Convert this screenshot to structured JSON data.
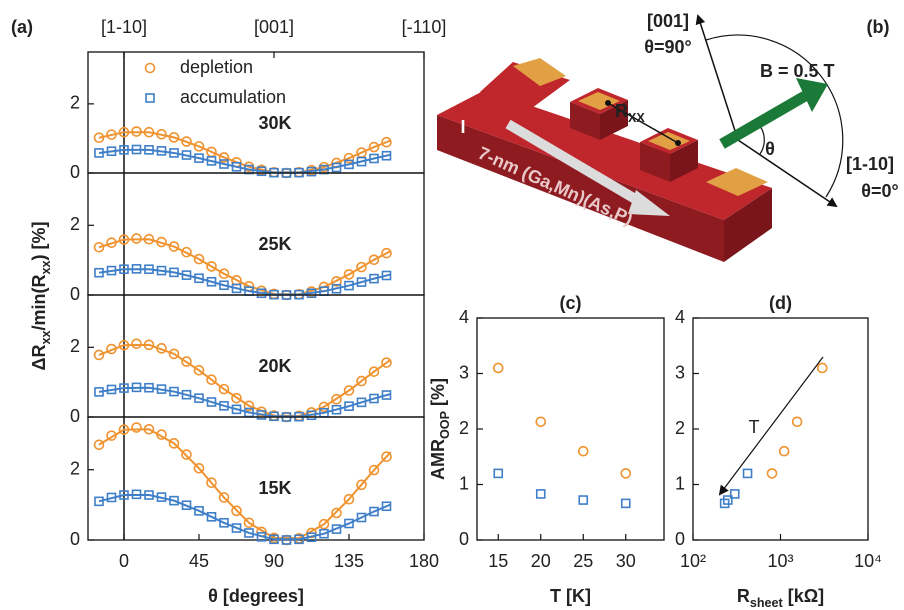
{
  "chart_data": [
    {
      "type": "scatter",
      "panel": "(a)",
      "label": "30K",
      "legend": "upper left",
      "ylabel": [
        "ΔR",
        "xx",
        "/min(R",
        "xx",
        ") [%]"
      ],
      "x2ticks": [
        {
          "value": 0,
          "label": "[1-10]"
        },
        {
          "value": 90,
          "label": "[001]"
        },
        {
          "value": 180,
          "label": "[-110]"
        }
      ],
      "vline": 0,
      "x": [
        -15,
        -7.5,
        0,
        7.5,
        15,
        22.5,
        30,
        37.5,
        45,
        52.5,
        60,
        67.5,
        75,
        82.5,
        90,
        97.5,
        105,
        112.5,
        120,
        127.5,
        135,
        142.5,
        150,
        157.5
      ],
      "fit_x": [
        -15,
        0,
        15,
        30,
        45,
        60,
        75,
        90,
        105,
        120,
        135,
        150,
        160
      ],
      "xlim": [
        -21.6,
        180
      ],
      "ylim": [
        0,
        3.5
      ],
      "yticks": [
        0,
        2
      ],
      "series": [
        {
          "name": "depletion",
          "color": "#f0922e",
          "marker": "circle",
          "values": [
            1.02,
            1.11,
            1.18,
            1.2,
            1.18,
            1.12,
            1.03,
            0.91,
            0.77,
            0.61,
            0.45,
            0.31,
            0.18,
            0.09,
            0.02,
            0,
            0.02,
            0.08,
            0.17,
            0.29,
            0.43,
            0.59,
            0.75,
            0.89
          ],
          "fit": [
            1.02,
            1.18,
            1.18,
            1.03,
            0.77,
            0.45,
            0.18,
            0.02,
            0.02,
            0.17,
            0.43,
            0.75,
            0.94
          ]
        },
        {
          "name": "accumulation",
          "color": "#3f7fc8",
          "marker": "square",
          "values": [
            0.58,
            0.63,
            0.67,
            0.68,
            0.67,
            0.64,
            0.58,
            0.52,
            0.43,
            0.35,
            0.26,
            0.18,
            0.1,
            0.05,
            0.01,
            0,
            0.01,
            0.04,
            0.1,
            0.16,
            0.25,
            0.33,
            0.42,
            0.5
          ],
          "fit": [
            0.58,
            0.67,
            0.67,
            0.58,
            0.43,
            0.26,
            0.1,
            0.01,
            0.01,
            0.1,
            0.25,
            0.42,
            0.53
          ]
        }
      ]
    },
    {
      "type": "scatter",
      "label": "25K",
      "x": [
        -15,
        -7.5,
        0,
        7.5,
        15,
        22.5,
        30,
        37.5,
        45,
        52.5,
        60,
        67.5,
        75,
        82.5,
        90,
        97.5,
        105,
        112.5,
        120,
        127.5,
        135,
        142.5,
        150,
        157.5
      ],
      "fit_x": [
        -15,
        0,
        15,
        30,
        45,
        60,
        75,
        90,
        105,
        120,
        135,
        150,
        160
      ],
      "xlim": [
        -21.6,
        180
      ],
      "ylim": [
        0,
        3.5
      ],
      "yticks": [
        0,
        2
      ],
      "series": [
        {
          "color": "#f0922e",
          "marker": "circle",
          "values": [
            1.37,
            1.5,
            1.59,
            1.62,
            1.6,
            1.52,
            1.39,
            1.23,
            1.03,
            0.82,
            0.61,
            0.42,
            0.25,
            0.12,
            0.03,
            0,
            0.02,
            0.1,
            0.23,
            0.39,
            0.59,
            0.8,
            1.01,
            1.2
          ],
          "fit": [
            1.37,
            1.59,
            1.6,
            1.39,
            1.03,
            0.61,
            0.25,
            0.03,
            0.02,
            0.23,
            0.59,
            1.01,
            1.26
          ]
        },
        {
          "color": "#3f7fc8",
          "marker": "square",
          "values": [
            0.64,
            0.7,
            0.74,
            0.75,
            0.74,
            0.7,
            0.65,
            0.57,
            0.48,
            0.38,
            0.28,
            0.19,
            0.11,
            0.05,
            0.01,
            0,
            0.01,
            0.05,
            0.11,
            0.18,
            0.27,
            0.37,
            0.47,
            0.56
          ],
          "fit": [
            0.64,
            0.74,
            0.74,
            0.65,
            0.48,
            0.28,
            0.11,
            0.01,
            0.01,
            0.11,
            0.27,
            0.47,
            0.59
          ]
        }
      ]
    },
    {
      "type": "scatter",
      "label": "20K",
      "x": [
        -15,
        -7.5,
        0,
        7.5,
        15,
        22.5,
        30,
        37.5,
        45,
        52.5,
        60,
        67.5,
        75,
        82.5,
        90,
        97.5,
        105,
        112.5,
        120,
        127.5,
        135,
        142.5,
        150,
        157.5
      ],
      "fit_x": [
        -15,
        0,
        15,
        30,
        45,
        60,
        75,
        90,
        105,
        120,
        135,
        150,
        160
      ],
      "xlim": [
        -21.6,
        180
      ],
      "ylim": [
        0,
        3.5
      ],
      "yticks": [
        0,
        2
      ],
      "series": [
        {
          "color": "#f0922e",
          "marker": "circle",
          "values": [
            1.78,
            1.95,
            2.06,
            2.1,
            2.07,
            1.97,
            1.81,
            1.59,
            1.34,
            1.07,
            0.8,
            0.54,
            0.32,
            0.15,
            0.04,
            0,
            0.03,
            0.13,
            0.29,
            0.51,
            0.76,
            1.03,
            1.3,
            1.56
          ],
          "fit": [
            1.78,
            2.06,
            2.07,
            1.81,
            1.34,
            0.8,
            0.32,
            0.04,
            0.03,
            0.29,
            0.76,
            1.3,
            1.64
          ]
        },
        {
          "color": "#3f7fc8",
          "marker": "square",
          "values": [
            0.72,
            0.79,
            0.83,
            0.85,
            0.84,
            0.8,
            0.73,
            0.64,
            0.54,
            0.43,
            0.32,
            0.22,
            0.13,
            0.06,
            0.02,
            0,
            0.01,
            0.05,
            0.12,
            0.21,
            0.31,
            0.42,
            0.53,
            0.63
          ],
          "fit": [
            0.72,
            0.83,
            0.84,
            0.73,
            0.54,
            0.32,
            0.13,
            0.02,
            0.01,
            0.12,
            0.31,
            0.53,
            0.66
          ]
        }
      ]
    },
    {
      "type": "scatter",
      "label": "15K",
      "xlabel": "θ [degrees]",
      "xticks": [
        0,
        45,
        90,
        135,
        180
      ],
      "x": [
        -15,
        -7.5,
        0,
        7.5,
        15,
        22.5,
        30,
        37.5,
        45,
        52.5,
        60,
        67.5,
        75,
        82.5,
        90,
        97.5,
        105,
        112.5,
        120,
        127.5,
        135,
        142.5,
        150,
        157.5
      ],
      "fit_x": [
        -15,
        0,
        15,
        30,
        45,
        60,
        75,
        90,
        105,
        120,
        135,
        150,
        160
      ],
      "xlim": [
        -21.6,
        180
      ],
      "ylim": [
        0,
        3.5
      ],
      "yticks": [
        0,
        2
      ],
      "series": [
        {
          "color": "#f0922e",
          "marker": "circle",
          "values": [
            2.71,
            2.97,
            3.14,
            3.2,
            3.15,
            3.0,
            2.75,
            2.43,
            2.04,
            1.63,
            1.21,
            0.83,
            0.49,
            0.23,
            0.06,
            0,
            0.05,
            0.2,
            0.45,
            0.77,
            1.16,
            1.57,
            1.99,
            2.37
          ],
          "fit": [
            2.71,
            3.14,
            3.15,
            2.75,
            2.04,
            1.21,
            0.49,
            0.06,
            0.05,
            0.45,
            1.16,
            1.99,
            2.5
          ]
        },
        {
          "color": "#3f7fc8",
          "marker": "square",
          "values": [
            1.1,
            1.21,
            1.28,
            1.3,
            1.28,
            1.22,
            1.12,
            0.99,
            0.83,
            0.66,
            0.49,
            0.34,
            0.2,
            0.09,
            0.02,
            0,
            0.02,
            0.08,
            0.18,
            0.31,
            0.47,
            0.64,
            0.81,
            0.96
          ],
          "fit": [
            1.1,
            1.28,
            1.28,
            1.12,
            0.83,
            0.49,
            0.2,
            0.02,
            0.02,
            0.18,
            0.47,
            0.81,
            1.01
          ]
        }
      ]
    },
    {
      "type": "scatter",
      "panel": "(c)",
      "xlabel": "T [K]",
      "ylabel": [
        "AMR",
        "OOP",
        " [%]"
      ],
      "x": [
        15,
        20,
        25,
        30
      ],
      "xlim": [
        12.5,
        34.5
      ],
      "xticks": [
        15,
        20,
        25,
        30
      ],
      "ylim": [
        0,
        4
      ],
      "yticks": [
        0,
        1,
        2,
        3,
        4
      ],
      "series": [
        {
          "color": "#f0922e",
          "marker": "circle",
          "values": [
            3.1,
            2.13,
            1.6,
            1.2
          ]
        },
        {
          "color": "#3f7fc8",
          "marker": "square",
          "values": [
            1.2,
            0.83,
            0.72,
            0.66
          ]
        }
      ]
    },
    {
      "type": "scatter",
      "panel": "(d)",
      "xlabel": [
        "R",
        "sheet",
        " [kΩ]"
      ],
      "annotation": "T",
      "xscale": "log",
      "xlim": [
        100,
        10000
      ],
      "xticks": [
        {
          "value": 100,
          "label": "10²"
        },
        {
          "value": 1000,
          "label": "10³"
        },
        {
          "value": 10000,
          "label": "10⁴"
        }
      ],
      "ylim": [
        0,
        4
      ],
      "yticks": [
        0,
        1,
        2,
        3,
        4
      ],
      "series": [
        {
          "color": "#f0922e",
          "marker": "circle",
          "x": [
            3000,
            1550,
            1100,
            800
          ],
          "values": [
            3.1,
            2.13,
            1.6,
            1.2
          ]
        },
        {
          "color": "#3f7fc8",
          "marker": "square",
          "x": [
            420,
            300,
            250,
            230
          ],
          "values": [
            1.2,
            0.83,
            0.72,
            0.66
          ]
        }
      ]
    }
  ],
  "diagram": {
    "panel": "(b)",
    "axis_001": "[001]",
    "theta_90": "θ=90°",
    "field": "B = 0.5 T",
    "theta": "θ",
    "axis_110": "[1-10]",
    "theta_0": "θ=0°",
    "current": "I",
    "rxx": [
      "R",
      "XX"
    ],
    "layer": "7-nm (Ga,Mn)(As,P)"
  }
}
